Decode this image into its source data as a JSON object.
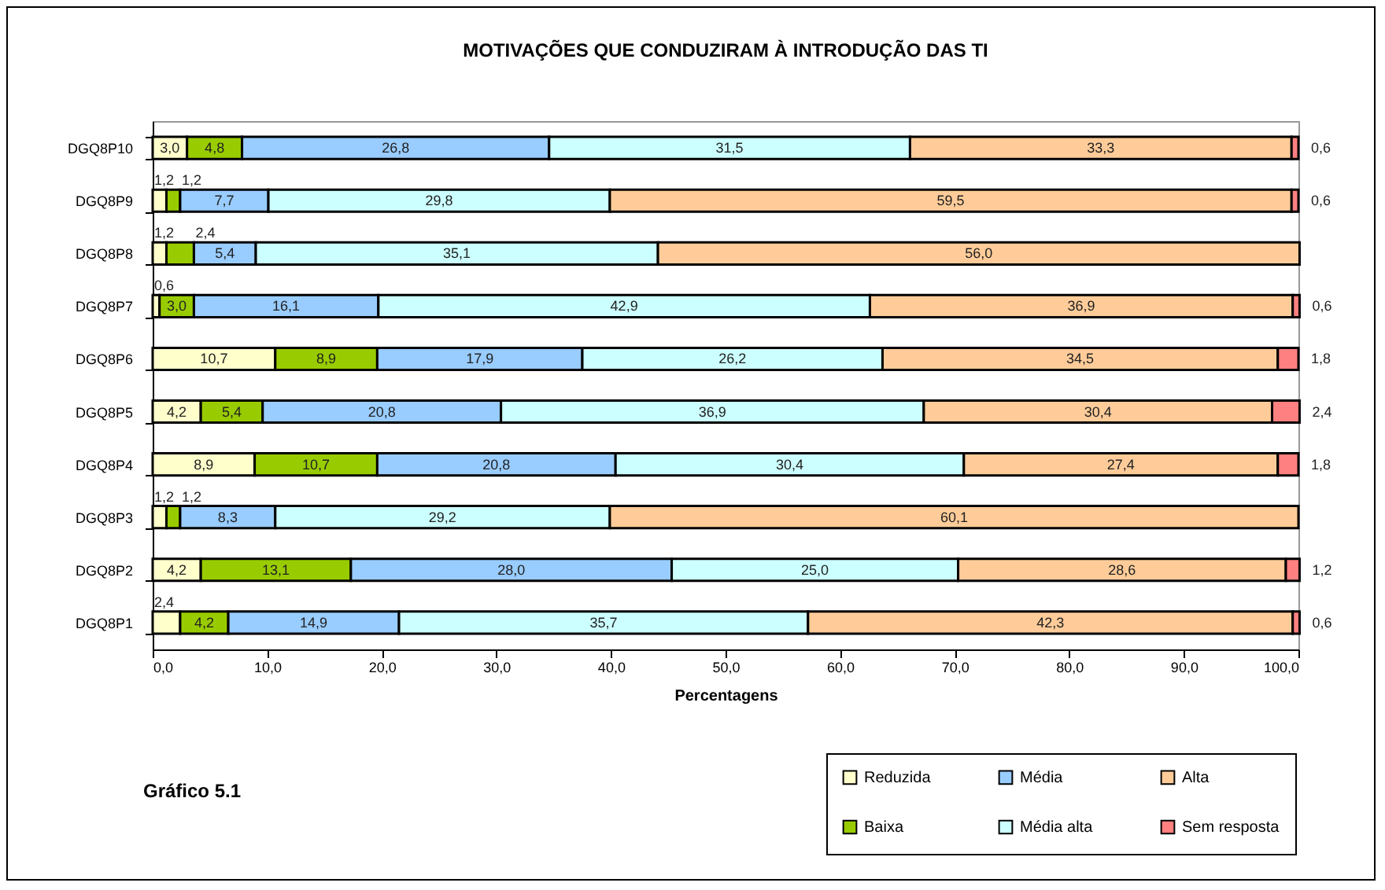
{
  "chart_data": {
    "type": "bar",
    "orientation": "horizontal",
    "stacked": true,
    "title": "MOTIVAÇÕES QUE CONDUZIRAM À INTRODUÇÃO DAS TI",
    "xlabel": "Percentagens",
    "annotations": [
      "Gráfico 5.1"
    ],
    "categories": [
      "DGQ8P10",
      "DGQ8P9",
      "DGQ8P8",
      "DGQ8P7",
      "DGQ8P6",
      "DGQ8P5",
      "DGQ8P4",
      "DGQ8P3",
      "DGQ8P2",
      "DGQ8P1"
    ],
    "xlim": [
      0,
      100
    ],
    "xticks": [
      {
        "value": 0,
        "label": "0,0"
      },
      {
        "value": 10,
        "label": "10,0"
      },
      {
        "value": 20,
        "label": "20,0"
      },
      {
        "value": 30,
        "label": "30,0"
      },
      {
        "value": 40,
        "label": "40,0"
      },
      {
        "value": 50,
        "label": "50,0"
      },
      {
        "value": 60,
        "label": "60,0"
      },
      {
        "value": 70,
        "label": "70,0"
      },
      {
        "value": 80,
        "label": "80,0"
      },
      {
        "value": 90,
        "label": "90,0"
      },
      {
        "value": 100,
        "label": "100,0"
      }
    ],
    "grid": false,
    "legend": "bottom right",
    "series": [
      {
        "name": "Reduzida",
        "color": "#ffffcc",
        "values": [
          3.0,
          1.2,
          1.2,
          0.6,
          10.7,
          4.2,
          8.9,
          1.2,
          4.2,
          2.4
        ],
        "value_labels": [
          "3,0",
          "1,2",
          "1,2",
          "0,6",
          "10,7",
          "4,2",
          "8,9",
          "1,2",
          "4,2",
          "2,4"
        ]
      },
      {
        "name": "Baixa",
        "color": "#99cc00",
        "values": [
          4.8,
          1.2,
          2.4,
          3.0,
          8.9,
          5.4,
          10.7,
          1.2,
          13.1,
          4.2
        ],
        "value_labels": [
          "4,8",
          "1,2",
          "2,4",
          "3,0",
          "8,9",
          "5,4",
          "10,7",
          "1,2",
          "13,1",
          "4,2"
        ]
      },
      {
        "name": "Média",
        "color": "#99ccff",
        "values": [
          26.8,
          7.7,
          5.4,
          16.1,
          17.9,
          20.8,
          20.8,
          8.3,
          28.0,
          14.9
        ],
        "value_labels": [
          "26,8",
          "7,7",
          "5,4",
          "16,1",
          "17,9",
          "20,8",
          "20,8",
          "8,3",
          "28,0",
          "14,9"
        ]
      },
      {
        "name": "Média alta",
        "color": "#ccffff",
        "values": [
          31.5,
          29.8,
          35.1,
          42.9,
          26.2,
          36.9,
          30.4,
          29.2,
          25.0,
          35.7
        ],
        "value_labels": [
          "31,5",
          "29,8",
          "35,1",
          "42,9",
          "26,2",
          "36,9",
          "30,4",
          "29,2",
          "25,0",
          "35,7"
        ]
      },
      {
        "name": "Alta",
        "color": "#ffcc99",
        "values": [
          33.3,
          59.5,
          56.0,
          36.9,
          34.5,
          30.4,
          27.4,
          60.1,
          28.6,
          42.3
        ],
        "value_labels": [
          "33,3",
          "59,5",
          "56,0",
          "36,9",
          "34,5",
          "30,4",
          "27,4",
          "60,1",
          "28,6",
          "42,3"
        ]
      },
      {
        "name": "Sem resposta",
        "color": "#ff8080",
        "values": [
          0.6,
          0.6,
          null,
          0.6,
          1.8,
          2.4,
          1.8,
          null,
          1.2,
          0.6
        ],
        "value_labels": [
          "0,6",
          "0,6",
          null,
          "0,6",
          "1,8",
          "2,4",
          "1,8",
          null,
          "1,2",
          "0,6"
        ]
      }
    ]
  }
}
